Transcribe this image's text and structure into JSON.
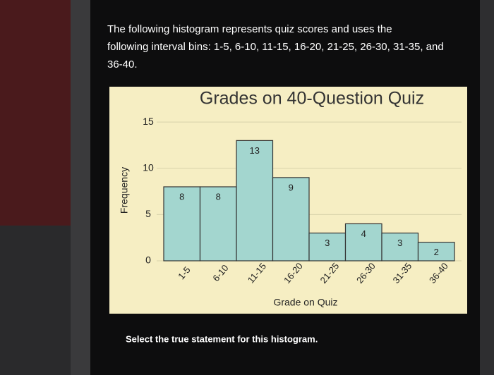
{
  "question_lines": [
    "The following histogram represents quiz scores and uses the",
    "following interval bins: 1-5, 6-10, 11-15, 16-20, 21-25, 26-30, 31-35, and",
    "36-40."
  ],
  "instruction": "Select the true statement for this histogram.",
  "chart_data": {
    "type": "bar",
    "title": "Grades on 40-Question Quiz",
    "x_label": "Grade on Quiz",
    "y_label": "Frequency",
    "categories": [
      "1-5",
      "6-10",
      "11-15",
      "16-20",
      "21-25",
      "26-30",
      "31-35",
      "36-40"
    ],
    "values": [
      8,
      8,
      13,
      9,
      3,
      4,
      3,
      2
    ],
    "color": "#a3d6cf",
    "ylim": [
      0,
      16
    ],
    "yticks": [
      0,
      5,
      10,
      15
    ],
    "grid": true
  }
}
